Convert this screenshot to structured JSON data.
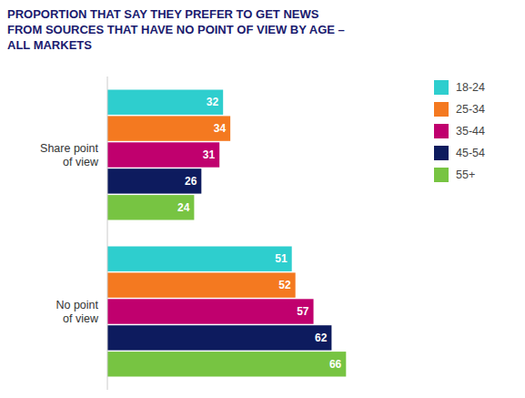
{
  "chart_data": {
    "type": "bar",
    "orientation": "horizontal",
    "title": "PROPORTION THAT SAY THEY PREFER TO GET NEWS\nFROM SOURCES THAT HAVE NO POINT OF VIEW BY AGE –\nALL MARKETS",
    "categories": [
      "Share point\nof view",
      "No point\nof view"
    ],
    "series": [
      {
        "name": "18-24",
        "color": "#2ecece",
        "values": [
          32,
          51
        ]
      },
      {
        "name": "25-34",
        "color": "#f47920",
        "values": [
          34,
          52
        ]
      },
      {
        "name": "35-44",
        "color": "#c0006e",
        "values": [
          31,
          57
        ]
      },
      {
        "name": "45-54",
        "color": "#0d1b5e",
        "values": [
          26,
          62
        ]
      },
      {
        "name": "55+",
        "color": "#77c442",
        "values": [
          24,
          66
        ]
      }
    ],
    "xlim": [
      0,
      78
    ],
    "data_labels": true,
    "tick_labels": "y",
    "legend": "upper right",
    "grid": false
  }
}
